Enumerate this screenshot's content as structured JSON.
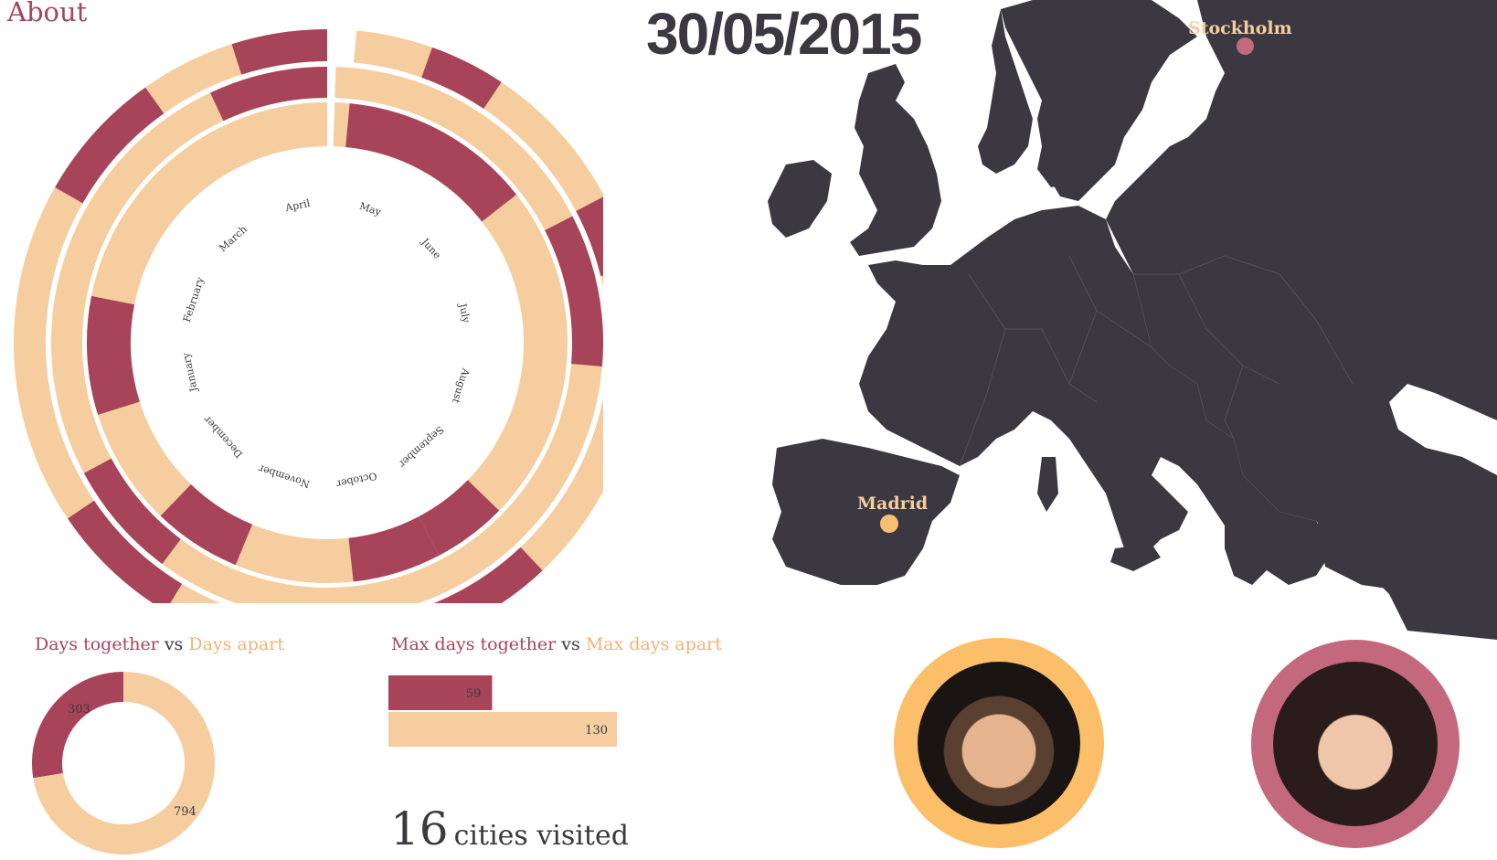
{
  "nav": {
    "about_label": "About"
  },
  "header": {
    "date": "30/05/2015"
  },
  "colors": {
    "together": "#a8445a",
    "apart": "#f5cd9f",
    "map_land": "#3b3841",
    "text_dark": "#3b3841",
    "avatar_left_ring": "#fbbf6a",
    "avatar_right_ring": "#c4687e"
  },
  "radial_calendar": {
    "month_labels": [
      "April",
      "March",
      "February",
      "January",
      "December",
      "November",
      "October",
      "September",
      "August",
      "July",
      "June",
      "May"
    ],
    "rings": [
      {
        "name": "outer",
        "together_segments": [
          [
            0.0,
            0.05
          ],
          [
            0.1,
            0.17
          ],
          [
            0.35,
            0.42
          ],
          [
            0.5,
            0.63
          ],
          [
            0.8,
            0.84
          ],
          [
            0.92,
            0.96
          ]
        ]
      },
      {
        "name": "middle",
        "together_segments": [
          [
            0.0,
            0.07
          ],
          [
            0.33,
            0.4
          ],
          [
            0.74,
            0.83
          ]
        ]
      },
      {
        "name": "inner",
        "together_segments": [
          [
            0.22,
            0.3
          ],
          [
            0.38,
            0.44
          ],
          [
            0.52,
            0.58
          ],
          [
            0.58,
            0.63
          ],
          [
            0.86,
            0.99
          ]
        ]
      }
    ]
  },
  "map": {
    "cities": [
      {
        "name": "Stockholm",
        "label_color": "#f5cd9f",
        "dot_color": "#c4687e"
      },
      {
        "name": "Madrid",
        "label_color": "#f5cd9f",
        "dot_color": "#f5c06f"
      }
    ]
  },
  "stats": {
    "days_heading": {
      "together": "Days together",
      "vs": "vs",
      "apart": "Days apart"
    },
    "max_heading": {
      "together": "Max days together",
      "vs": "vs",
      "apart": "Max days apart"
    },
    "days_donut": {
      "together": 303,
      "apart": 794
    },
    "max_bars": {
      "together": 59,
      "apart": 130
    },
    "cities_visited": {
      "count": "16",
      "label": "cities visited"
    }
  },
  "people": [
    {
      "name": "avatar-left",
      "icon": "person-photo"
    },
    {
      "name": "avatar-right",
      "icon": "person-photo"
    }
  ]
}
